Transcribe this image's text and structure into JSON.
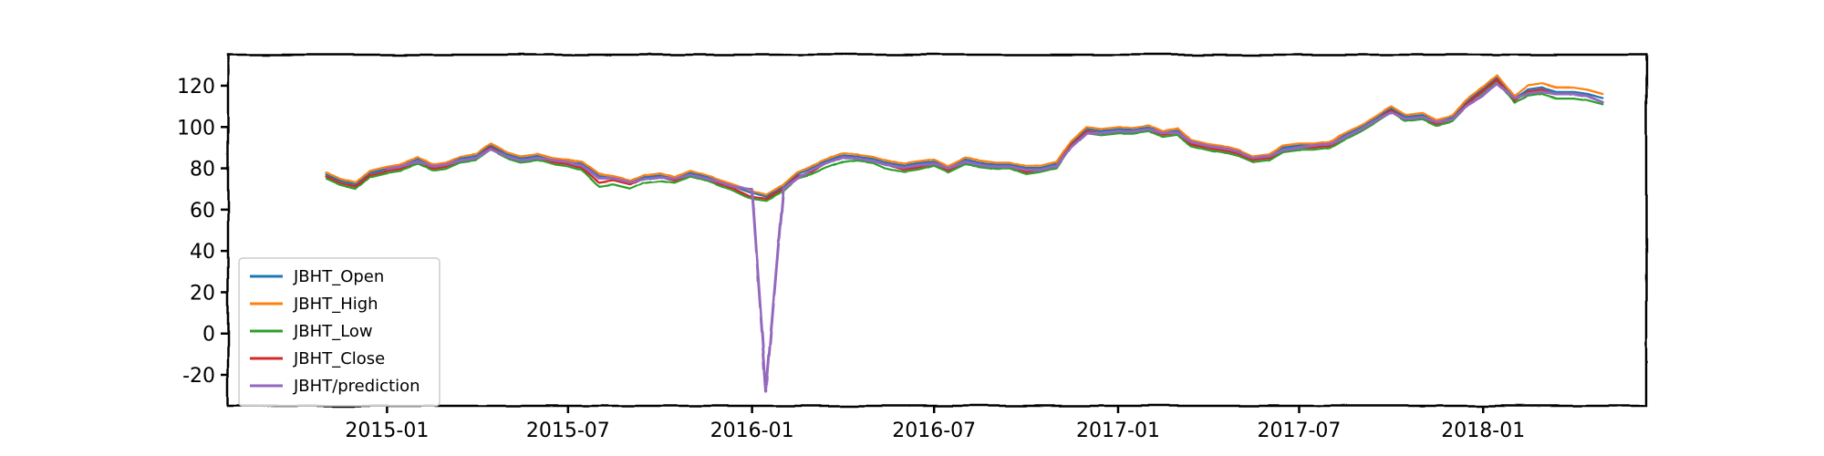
{
  "chart_data": {
    "type": "line",
    "title": "",
    "xlabel": "",
    "ylabel": "",
    "style": "xkcd",
    "grid": false,
    "legend_position": "lower-left",
    "xlim": [
      "2014-07-26",
      "2018-06-13"
    ],
    "ylim": [
      -35,
      135
    ],
    "x_ticks": [
      {
        "date": "2015-01-01",
        "label": "2015-01"
      },
      {
        "date": "2015-07-01",
        "label": "2015-07"
      },
      {
        "date": "2016-01-01",
        "label": "2016-01"
      },
      {
        "date": "2016-07-01",
        "label": "2016-07"
      },
      {
        "date": "2017-01-01",
        "label": "2017-01"
      },
      {
        "date": "2017-07-01",
        "label": "2017-07"
      },
      {
        "date": "2018-01-01",
        "label": "2018-01"
      }
    ],
    "y_ticks": [
      {
        "value": 120,
        "label": "120"
      },
      {
        "value": 100,
        "label": "100"
      },
      {
        "value": 80,
        "label": "80"
      },
      {
        "value": 60,
        "label": "60"
      },
      {
        "value": 40,
        "label": "40"
      },
      {
        "value": 20,
        "label": "20"
      },
      {
        "value": 0,
        "label": "0"
      },
      {
        "value": -20,
        "label": "-20"
      }
    ],
    "x": [
      "2014-11-01",
      "2014-11-15",
      "2014-12-01",
      "2014-12-15",
      "2015-01-01",
      "2015-01-15",
      "2015-02-01",
      "2015-02-15",
      "2015-03-01",
      "2015-03-15",
      "2015-04-01",
      "2015-04-15",
      "2015-05-01",
      "2015-05-15",
      "2015-06-01",
      "2015-06-15",
      "2015-07-01",
      "2015-07-15",
      "2015-08-01",
      "2015-08-15",
      "2015-09-01",
      "2015-09-15",
      "2015-10-01",
      "2015-10-15",
      "2015-11-01",
      "2015-11-15",
      "2015-12-01",
      "2015-12-15",
      "2016-01-01",
      "2016-01-15",
      "2016-02-01",
      "2016-02-15",
      "2016-03-01",
      "2016-03-15",
      "2016-04-01",
      "2016-04-15",
      "2016-05-01",
      "2016-05-15",
      "2016-06-01",
      "2016-06-15",
      "2016-07-01",
      "2016-07-15",
      "2016-08-01",
      "2016-08-15",
      "2016-09-01",
      "2016-09-15",
      "2016-10-01",
      "2016-10-15",
      "2016-11-01",
      "2016-11-15",
      "2016-12-01",
      "2016-12-15",
      "2017-01-01",
      "2017-01-15",
      "2017-02-01",
      "2017-02-15",
      "2017-03-01",
      "2017-03-15",
      "2017-04-01",
      "2017-04-15",
      "2017-05-01",
      "2017-05-15",
      "2017-06-01",
      "2017-06-15",
      "2017-07-01",
      "2017-07-15",
      "2017-08-01",
      "2017-08-15",
      "2017-09-01",
      "2017-09-15",
      "2017-10-01",
      "2017-10-15",
      "2017-11-01",
      "2017-11-15",
      "2017-12-01",
      "2017-12-15",
      "2018-01-01",
      "2018-01-15",
      "2018-02-01",
      "2018-02-15",
      "2018-03-01",
      "2018-03-15",
      "2018-04-01",
      "2018-04-15",
      "2018-05-01"
    ],
    "series": [
      {
        "name": "JBHT_Open",
        "color": "#1f77b4",
        "values": [
          77,
          74,
          72,
          78,
          80,
          81,
          84,
          81,
          82,
          85,
          86,
          91,
          87,
          85,
          86,
          84,
          83,
          82,
          76,
          75,
          73,
          76,
          77,
          75,
          78,
          76,
          73,
          71,
          68,
          66,
          71,
          77,
          80,
          83,
          86,
          86,
          85,
          83,
          81,
          82,
          83,
          80,
          84,
          83,
          82,
          82,
          80,
          80,
          82,
          92,
          99,
          98,
          99,
          99,
          100,
          97,
          98,
          93,
          91,
          90,
          88,
          85,
          86,
          90,
          91,
          91,
          92,
          96,
          100,
          104,
          109,
          105,
          106,
          103,
          105,
          112,
          118,
          124,
          114,
          118,
          119,
          117,
          117,
          116,
          114
        ]
      },
      {
        "name": "JBHT_High",
        "color": "#ff7f0e",
        "values": [
          78,
          75,
          73,
          79,
          81,
          82,
          85,
          82,
          83,
          86,
          87,
          92,
          88,
          86,
          87,
          85,
          84,
          83,
          77,
          76,
          74,
          77,
          78,
          76,
          79,
          77,
          74,
          72,
          69,
          67,
          72,
          78,
          81,
          84,
          87,
          87,
          86,
          84,
          82,
          83,
          84,
          81,
          85,
          84,
          83,
          83,
          81,
          81,
          83,
          93,
          100,
          99,
          100,
          100,
          101,
          98,
          99,
          94,
          92,
          91,
          89,
          86,
          87,
          91,
          92,
          92,
          93,
          97,
          101,
          105,
          110,
          106,
          107,
          104,
          106,
          113,
          119,
          125,
          115,
          120,
          121,
          119,
          119,
          118,
          116
        ]
      },
      {
        "name": "JBHT_Low",
        "color": "#2ca02c",
        "values": [
          75,
          72,
          70,
          76,
          78,
          79,
          82,
          79,
          80,
          83,
          84,
          89,
          85,
          83,
          84,
          82,
          81,
          79,
          71,
          72,
          70,
          73,
          74,
          73,
          76,
          74,
          71,
          69,
          65,
          64,
          69,
          75,
          77,
          80,
          83,
          84,
          83,
          80,
          78,
          79,
          81,
          78,
          82,
          81,
          80,
          80,
          77,
          78,
          80,
          90,
          97,
          96,
          97,
          97,
          98,
          95,
          96,
          91,
          89,
          88,
          86,
          83,
          84,
          88,
          89,
          89,
          90,
          94,
          98,
          102,
          107,
          103,
          104,
          101,
          103,
          110,
          116,
          122,
          112,
          115,
          116,
          114,
          114,
          113,
          111
        ]
      },
      {
        "name": "JBHT_Close",
        "color": "#d62728",
        "values": [
          76,
          73,
          71,
          77,
          79,
          80,
          83,
          80,
          81,
          84,
          85,
          90,
          86,
          84,
          85,
          83,
          82,
          80,
          73,
          74,
          72,
          75,
          76,
          74,
          77,
          75,
          72,
          70,
          66,
          65,
          70,
          76,
          78,
          82,
          85,
          85,
          84,
          82,
          79,
          80,
          82,
          79,
          83,
          82,
          81,
          81,
          78,
          79,
          81,
          91,
          98,
          97,
          98,
          98,
          99,
          96,
          97,
          92,
          90,
          89,
          87,
          84,
          85,
          89,
          90,
          90,
          91,
          95,
          99,
          103,
          108,
          104,
          105,
          102,
          104,
          111,
          117,
          123,
          113,
          117,
          118,
          116,
          116,
          115,
          112
        ]
      },
      {
        "name": "JBHT/prediction",
        "color": "#9467bd",
        "values": [
          null,
          null,
          null,
          null,
          80,
          81,
          83,
          81,
          82,
          84,
          85,
          89,
          86,
          84,
          85,
          84,
          83,
          81,
          75,
          75,
          73,
          75,
          76,
          75,
          77,
          75,
          73,
          71,
          70,
          -28,
          70,
          75,
          79,
          82,
          85,
          85,
          84,
          82,
          80,
          81,
          82,
          80,
          83,
          82,
          81,
          81,
          79,
          79,
          81,
          90,
          97,
          97,
          98,
          98,
          99,
          97,
          97,
          93,
          91,
          90,
          88,
          85,
          86,
          89,
          90,
          91,
          92,
          95,
          99,
          103,
          107,
          104,
          105,
          103,
          104,
          110,
          115,
          121,
          114,
          116,
          117,
          116,
          116,
          115,
          112
        ]
      }
    ]
  }
}
